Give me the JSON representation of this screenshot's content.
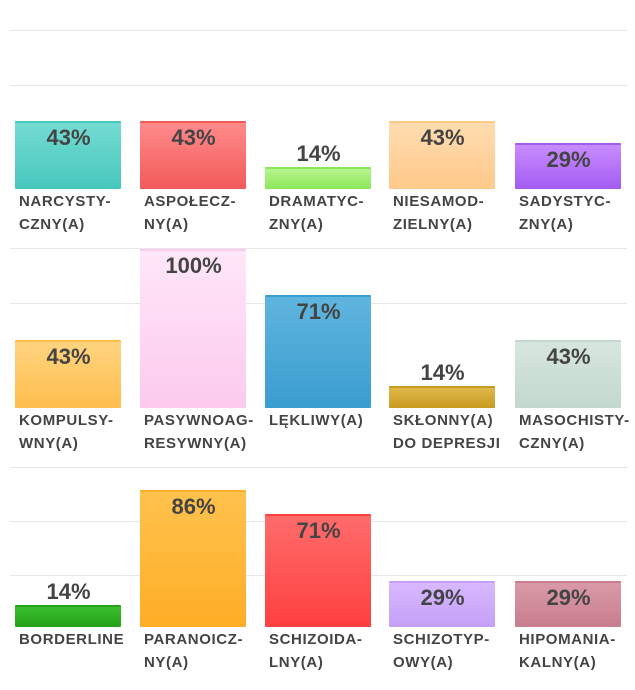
{
  "chart_data": {
    "type": "bar",
    "title": "",
    "ylim": [
      0,
      100
    ],
    "panels": [
      {
        "categories": [
          [
            "NARCYSTY-",
            "CZNY(A)"
          ],
          [
            "ASPOŁECZ-",
            "NY(A)"
          ],
          [
            "DRAMATYC-",
            "ZNY(A)"
          ],
          [
            "NIESAMOD-",
            "ZIELNY(A)"
          ],
          [
            "SADYSTYC-",
            "ZNY(A)"
          ]
        ],
        "values": [
          43,
          43,
          14,
          43,
          29
        ],
        "value_labels": [
          "43%",
          "43%",
          "14%",
          "43%",
          "29%"
        ],
        "colors": [
          [
            "#74dbd2",
            "#47c7bc"
          ],
          [
            "#ff8a8a",
            "#f25a5a"
          ],
          [
            "#b6f58c",
            "#8be658"
          ],
          [
            "#ffdcb0",
            "#ffc98a"
          ],
          [
            "#c88cff",
            "#a35cf2"
          ]
        ]
      },
      {
        "categories": [
          [
            "KOMPULSY-",
            "WNY(A)"
          ],
          [
            "PASYWNOAG-",
            "RESYWNY(A)"
          ],
          [
            "LĘKLIWY(A)"
          ],
          [
            "SKŁONNY(A)",
            "DO DEPRESJI"
          ],
          [
            "MASOCHISTY-",
            "CZNY(A)"
          ]
        ],
        "values": [
          43,
          100,
          71,
          14,
          43
        ],
        "value_labels": [
          "43%",
          "100%",
          "71%",
          "14%",
          "43%"
        ],
        "colors": [
          [
            "#ffd480",
            "#ffbe4d"
          ],
          [
            "#ffe6f8",
            "#fccaee"
          ],
          [
            "#5fb5de",
            "#3a9dcf"
          ],
          [
            "#e0b84a",
            "#c99a20"
          ],
          [
            "#d6e6de",
            "#c3d8cc"
          ]
        ]
      },
      {
        "categories": [
          [
            "BORDERLINE"
          ],
          [
            "PARANOICZ-",
            "NY(A)"
          ],
          [
            "SCHIZOIDA-",
            "LNY(A)"
          ],
          [
            "SCHIZOTYP-",
            "OWY(A)"
          ],
          [
            "HIPOMANIA-",
            "KALNY(A)"
          ]
        ],
        "values": [
          14,
          86,
          71,
          29,
          29
        ],
        "value_labels": [
          "14%",
          "86%",
          "71%",
          "29%",
          "29%"
        ],
        "colors": [
          [
            "#3bbf2e",
            "#24a01a"
          ],
          [
            "#ffc24d",
            "#ffad26"
          ],
          [
            "#ff6b6b",
            "#ff4040"
          ],
          [
            "#d8b8ff",
            "#c4a0f7"
          ],
          [
            "#d99aa8",
            "#c87d8d"
          ]
        ]
      }
    ]
  }
}
